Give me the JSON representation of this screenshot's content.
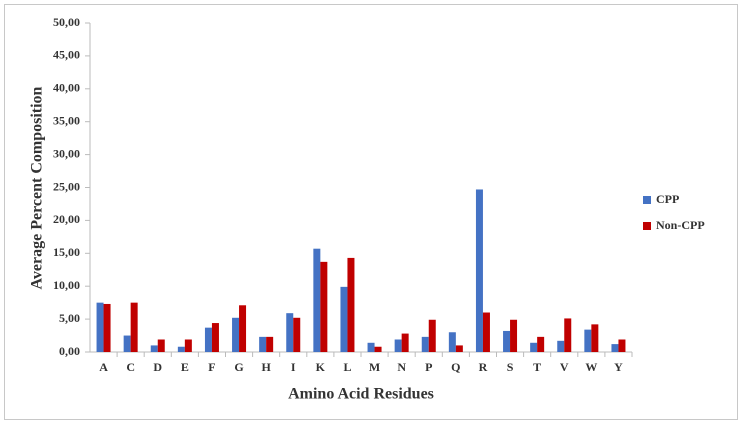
{
  "chart_data": {
    "type": "bar",
    "x_label": "Amino Acid Residues",
    "y_label": "Average Percent Composition",
    "categories": [
      "A",
      "C",
      "D",
      "E",
      "F",
      "G",
      "H",
      "I",
      "K",
      "L",
      "M",
      "N",
      "P",
      "Q",
      "R",
      "S",
      "T",
      "V",
      "W",
      "Y"
    ],
    "series": [
      {
        "name": "CPP",
        "color": "#4472c4",
        "values": [
          7.5,
          2.5,
          1.0,
          0.8,
          3.7,
          5.2,
          2.3,
          5.9,
          15.7,
          9.9,
          1.4,
          1.9,
          2.3,
          3.0,
          24.7,
          3.2,
          1.4,
          1.7,
          3.4,
          1.2
        ]
      },
      {
        "name": "Non-CPP",
        "color": "#c00000",
        "values": [
          7.3,
          7.5,
          1.9,
          1.9,
          4.4,
          7.1,
          2.3,
          5.2,
          13.7,
          14.3,
          0.8,
          2.8,
          4.9,
          1.0,
          6.0,
          4.9,
          2.3,
          5.1,
          4.2,
          1.9
        ]
      }
    ],
    "ylim": [
      0,
      50
    ],
    "yticks": [
      {
        "value": 0,
        "label": "0,00"
      },
      {
        "value": 5,
        "label": "5,00"
      },
      {
        "value": 10,
        "label": "10,00"
      },
      {
        "value": 15,
        "label": "15,00"
      },
      {
        "value": 20,
        "label": "20,00"
      },
      {
        "value": 25,
        "label": "25,00"
      },
      {
        "value": 30,
        "label": "30,00"
      },
      {
        "value": 35,
        "label": "35,00"
      },
      {
        "value": 40,
        "label": "40,00"
      },
      {
        "value": 45,
        "label": "45,00"
      },
      {
        "value": 50,
        "label": "50,00"
      }
    ],
    "legend": "right"
  }
}
